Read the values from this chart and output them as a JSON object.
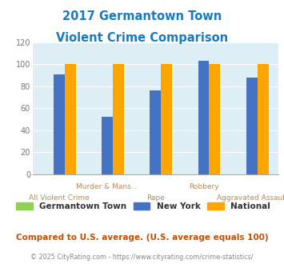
{
  "title_line1": "2017 Germantown Town",
  "title_line2": "Violent Crime Comparison",
  "categories_top": [
    "Murder & Mans...",
    "",
    "Robbery",
    ""
  ],
  "categories_bottom": [
    "All Violent Crime",
    "",
    "Rape",
    "",
    "Aggravated Assault"
  ],
  "series": {
    "Germantown Town": [
      0,
      0,
      0,
      0,
      0
    ],
    "New York": [
      91,
      52,
      76,
      103,
      88
    ],
    "National": [
      100,
      100,
      100,
      100,
      100
    ]
  },
  "colors": {
    "Germantown Town": "#92d050",
    "New York": "#4472c4",
    "National": "#ffa500"
  },
  "ylim": [
    0,
    120
  ],
  "yticks": [
    0,
    20,
    40,
    60,
    80,
    100,
    120
  ],
  "background_color": "#ddeef5",
  "title_color": "#1a7abf",
  "xlabel_top_color": "#c0874a",
  "xlabel_bottom_color": "#c0874a",
  "footer_text": "Compared to U.S. average. (U.S. average equals 100)",
  "copyright_text": "© 2025 CityRating.com - https://www.cityrating.com/crime-statistics/",
  "footer_color": "#c05000",
  "copyright_color": "#888888"
}
